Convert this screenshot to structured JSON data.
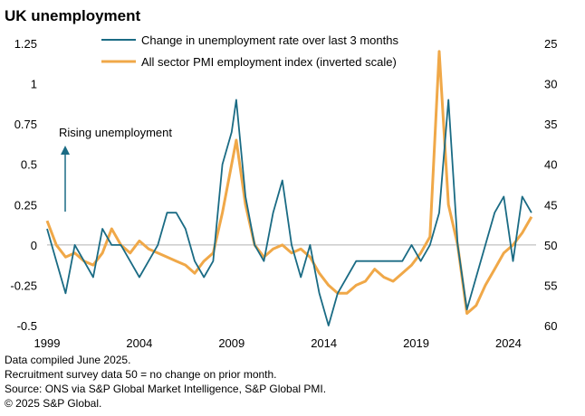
{
  "chart_data": {
    "type": "line",
    "title": "UK unemployment",
    "x_ticks": [
      "1999",
      "2004",
      "2009",
      "2014",
      "2019",
      "2024"
    ],
    "left_axis": {
      "ylim": [
        -0.5,
        1.25
      ],
      "ticks": [
        "1.25",
        "1",
        "0.75",
        "0.5",
        "0.25",
        "0",
        "-0.25",
        "-0.5"
      ]
    },
    "right_axis": {
      "ylim": [
        25,
        60
      ],
      "inverted": true,
      "ticks": [
        "25",
        "30",
        "35",
        "40",
        "45",
        "50",
        "55",
        "60"
      ]
    },
    "annotation": "Rising unemployment",
    "series": [
      {
        "name": "Change in unemployment rate over last 3 months",
        "axis": "left",
        "color": "#1a6b84",
        "points": [
          [
            "1999-01",
            0.1
          ],
          [
            "1999-07",
            -0.1
          ],
          [
            "2000-01",
            -0.3
          ],
          [
            "2000-07",
            0.0
          ],
          [
            "2001-01",
            -0.1
          ],
          [
            "2001-07",
            -0.2
          ],
          [
            "2002-01",
            0.1
          ],
          [
            "2002-07",
            0.0
          ],
          [
            "2003-01",
            0.0
          ],
          [
            "2003-07",
            -0.1
          ],
          [
            "2004-01",
            -0.2
          ],
          [
            "2004-07",
            -0.1
          ],
          [
            "2005-01",
            0.0
          ],
          [
            "2005-07",
            0.2
          ],
          [
            "2006-01",
            0.2
          ],
          [
            "2006-07",
            0.1
          ],
          [
            "2007-01",
            -0.1
          ],
          [
            "2007-07",
            -0.2
          ],
          [
            "2008-01",
            -0.1
          ],
          [
            "2008-07",
            0.5
          ],
          [
            "2009-01",
            0.7
          ],
          [
            "2009-04",
            0.9
          ],
          [
            "2009-10",
            0.3
          ],
          [
            "2010-04",
            0.0
          ],
          [
            "2010-10",
            -0.1
          ],
          [
            "2011-04",
            0.2
          ],
          [
            "2011-10",
            0.4
          ],
          [
            "2012-04",
            0.0
          ],
          [
            "2012-10",
            -0.2
          ],
          [
            "2013-04",
            0.0
          ],
          [
            "2013-10",
            -0.3
          ],
          [
            "2014-04",
            -0.5
          ],
          [
            "2014-10",
            -0.3
          ],
          [
            "2015-04",
            -0.2
          ],
          [
            "2015-10",
            -0.1
          ],
          [
            "2016-04",
            -0.1
          ],
          [
            "2016-10",
            -0.1
          ],
          [
            "2017-04",
            -0.1
          ],
          [
            "2017-10",
            -0.1
          ],
          [
            "2018-04",
            -0.1
          ],
          [
            "2018-10",
            0.0
          ],
          [
            "2019-04",
            -0.1
          ],
          [
            "2019-10",
            0.0
          ],
          [
            "2020-04",
            0.2
          ],
          [
            "2020-10",
            0.9
          ],
          [
            "2021-04",
            0.0
          ],
          [
            "2021-10",
            -0.4
          ],
          [
            "2022-04",
            -0.2
          ],
          [
            "2022-10",
            0.0
          ],
          [
            "2023-04",
            0.2
          ],
          [
            "2023-10",
            0.3
          ],
          [
            "2024-04",
            -0.1
          ],
          [
            "2024-10",
            0.3
          ],
          [
            "2025-04",
            0.2
          ]
        ]
      },
      {
        "name": "All sector PMI employment index (inverted scale)",
        "axis": "right",
        "color": "#f0a848",
        "points": [
          [
            "1999-01",
            47.0
          ],
          [
            "1999-07",
            50.0
          ],
          [
            "2000-01",
            51.5
          ],
          [
            "2000-07",
            51.0
          ],
          [
            "2001-01",
            52.0
          ],
          [
            "2001-07",
            52.5
          ],
          [
            "2002-01",
            51.0
          ],
          [
            "2002-07",
            48.0
          ],
          [
            "2003-01",
            50.0
          ],
          [
            "2003-07",
            51.0
          ],
          [
            "2004-01",
            49.5
          ],
          [
            "2004-07",
            50.5
          ],
          [
            "2005-01",
            51.0
          ],
          [
            "2005-07",
            51.5
          ],
          [
            "2006-01",
            52.0
          ],
          [
            "2006-07",
            52.5
          ],
          [
            "2007-01",
            53.5
          ],
          [
            "2007-07",
            52.0
          ],
          [
            "2008-01",
            51.0
          ],
          [
            "2008-07",
            46.0
          ],
          [
            "2009-01",
            40.0
          ],
          [
            "2009-04",
            37.0
          ],
          [
            "2009-10",
            45.0
          ],
          [
            "2010-04",
            50.0
          ],
          [
            "2010-10",
            51.5
          ],
          [
            "2011-04",
            50.5
          ],
          [
            "2011-10",
            50.0
          ],
          [
            "2012-04",
            51.0
          ],
          [
            "2012-10",
            50.5
          ],
          [
            "2013-04",
            51.5
          ],
          [
            "2013-10",
            53.5
          ],
          [
            "2014-04",
            55.0
          ],
          [
            "2014-10",
            56.0
          ],
          [
            "2015-04",
            56.0
          ],
          [
            "2015-10",
            55.0
          ],
          [
            "2016-04",
            54.5
          ],
          [
            "2016-10",
            53.0
          ],
          [
            "2017-04",
            54.0
          ],
          [
            "2017-10",
            54.5
          ],
          [
            "2018-04",
            53.5
          ],
          [
            "2018-10",
            52.5
          ],
          [
            "2019-04",
            51.0
          ],
          [
            "2019-10",
            49.0
          ],
          [
            "2020-04",
            26.0
          ],
          [
            "2020-10",
            45.0
          ],
          [
            "2021-04",
            50.0
          ],
          [
            "2021-10",
            58.5
          ],
          [
            "2022-04",
            57.5
          ],
          [
            "2022-10",
            55.0
          ],
          [
            "2023-04",
            53.0
          ],
          [
            "2023-10",
            51.0
          ],
          [
            "2024-04",
            50.0
          ],
          [
            "2024-10",
            48.5
          ],
          [
            "2025-04",
            46.5
          ]
        ]
      }
    ],
    "legend_position": "top-center",
    "grid": false
  },
  "footnotes": [
    "Data compiled June 2025.",
    "Recruitment survey data 50 = no change on prior month.",
    "Source: ONS via S&P Global Market Intelligence, S&P Global PMI.",
    "© 2025 S&P Global."
  ]
}
